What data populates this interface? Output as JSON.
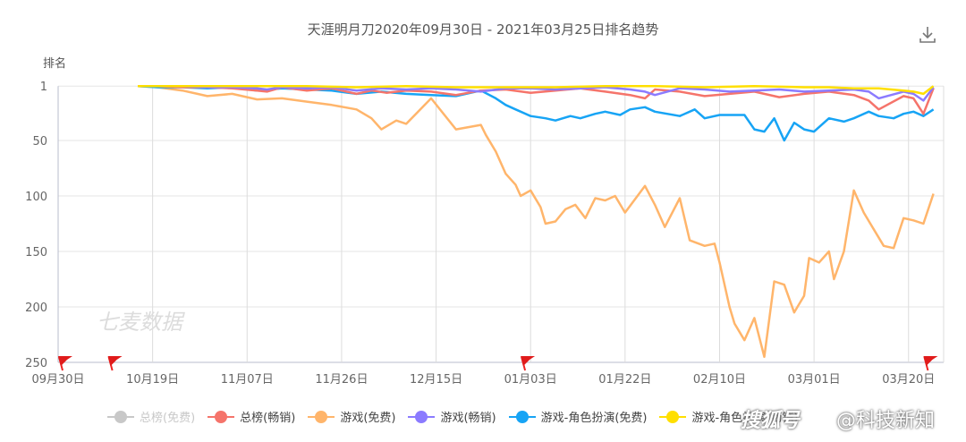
{
  "header": {
    "title": "天涯明月刀2020年09月30日 - 2021年03月25日排名趋势",
    "download_icon": "download-icon"
  },
  "watermarks": {
    "chart": "七麦数据",
    "overlay_brand": "搜狐号",
    "overlay_author": "@科技新知"
  },
  "chart_data": {
    "type": "line",
    "title": "天涯明月刀2020年09月30日 - 2021年03月25日排名趋势",
    "xlabel": "",
    "ylabel": "排名",
    "y_inverted": true,
    "ylim": [
      1,
      250
    ],
    "y_ticks": [
      1,
      50,
      100,
      150,
      200,
      250
    ],
    "x_ticks": [
      "09月30日",
      "10月19日",
      "11月07日",
      "11月26日",
      "12月15日",
      "01月03日",
      "01月22日",
      "02月10日",
      "03月01日",
      "03月20日"
    ],
    "grid": true,
    "legend_position": "bottom",
    "x_day_offsets_note": "x values are days since 09月30日",
    "series": [
      {
        "name": "总榜(免费)",
        "color": "#c8c8c8",
        "visible": false,
        "x": [],
        "values": []
      },
      {
        "name": "总榜(畅销)",
        "color": "#f5746b",
        "visible": true,
        "x": [
          16,
          20,
          25,
          30,
          35,
          40,
          42,
          45,
          50,
          55,
          60,
          63,
          66,
          70,
          75,
          80,
          85,
          90,
          95,
          100,
          105,
          110,
          115,
          118,
          120,
          125,
          130,
          135,
          140,
          145,
          150,
          155,
          160,
          163,
          165,
          170,
          172,
          174,
          176
        ],
        "values": [
          1,
          1,
          2,
          2,
          3,
          5,
          6,
          2,
          5,
          3,
          8,
          5,
          7,
          5,
          6,
          9,
          5,
          4,
          7,
          5,
          3,
          6,
          9,
          12,
          4,
          6,
          10,
          8,
          6,
          11,
          8,
          6,
          9,
          14,
          22,
          10,
          12,
          26,
          3
        ]
      },
      {
        "name": "游戏(免费)",
        "color": "#ffb56b",
        "visible": true,
        "x": [
          16,
          20,
          25,
          28,
          30,
          35,
          40,
          45,
          50,
          55,
          60,
          63,
          65,
          68,
          70,
          75,
          80,
          85,
          86,
          88,
          90,
          92,
          93,
          95,
          97,
          98,
          100,
          102,
          104,
          106,
          108,
          110,
          112,
          114,
          118,
          120,
          122,
          125,
          127,
          130,
          132,
          133,
          135,
          136,
          138,
          140,
          142,
          144,
          146,
          148,
          150,
          151,
          153,
          155,
          156,
          158,
          160,
          162,
          164,
          166,
          168,
          170,
          172,
          174,
          176
        ],
        "values": [
          1,
          2,
          5,
          8,
          10,
          8,
          13,
          12,
          15,
          18,
          22,
          30,
          40,
          32,
          35,
          12,
          40,
          36,
          45,
          60,
          80,
          90,
          100,
          95,
          110,
          125,
          123,
          112,
          108,
          120,
          102,
          104,
          100,
          115,
          91,
          108,
          128,
          102,
          140,
          145,
          143,
          160,
          200,
          215,
          230,
          210,
          245,
          177,
          180,
          205,
          190,
          156,
          160,
          150,
          175,
          150,
          95,
          115,
          130,
          145,
          147,
          120,
          122,
          125,
          98
        ]
      },
      {
        "name": "游戏(畅销)",
        "color": "#8b7bff",
        "visible": true,
        "x": [
          16,
          20,
          25,
          30,
          35,
          40,
          42,
          45,
          50,
          55,
          60,
          65,
          70,
          75,
          80,
          85,
          90,
          95,
          100,
          105,
          110,
          115,
          118,
          120,
          125,
          130,
          135,
          140,
          145,
          150,
          155,
          160,
          163,
          165,
          170,
          172,
          174,
          176
        ],
        "values": [
          1,
          1,
          1,
          2,
          2,
          3,
          4,
          2,
          3,
          2,
          5,
          3,
          4,
          3,
          4,
          6,
          3,
          3,
          4,
          3,
          2,
          4,
          6,
          9,
          3,
          4,
          6,
          5,
          4,
          6,
          5,
          4,
          6,
          12,
          6,
          8,
          14,
          2
        ]
      },
      {
        "name": "游戏-角色扮演(免费)",
        "color": "#17a4f5",
        "visible": true,
        "x": [
          16,
          20,
          25,
          30,
          35,
          40,
          45,
          50,
          55,
          60,
          65,
          70,
          75,
          80,
          85,
          88,
          90,
          92,
          95,
          98,
          100,
          103,
          105,
          108,
          110,
          113,
          115,
          118,
          120,
          125,
          128,
          130,
          133,
          135,
          138,
          140,
          142,
          144,
          146,
          148,
          150,
          152,
          155,
          158,
          160,
          163,
          165,
          168,
          170,
          172,
          174,
          176
        ],
        "values": [
          1,
          2,
          2,
          3,
          2,
          5,
          3,
          4,
          5,
          8,
          6,
          8,
          9,
          10,
          5,
          12,
          18,
          22,
          28,
          30,
          32,
          28,
          30,
          26,
          24,
          27,
          22,
          20,
          24,
          28,
          22,
          30,
          27,
          27,
          27,
          40,
          42,
          30,
          50,
          34,
          40,
          42,
          30,
          33,
          30,
          24,
          28,
          30,
          26,
          24,
          28,
          22
        ]
      },
      {
        "name": "游戏-角色扮演(畅销)",
        "color": "#ffdf00",
        "visible": true,
        "x": [
          16,
          20,
          30,
          40,
          50,
          60,
          70,
          80,
          90,
          100,
          110,
          120,
          130,
          140,
          150,
          155,
          160,
          165,
          170,
          172,
          174,
          176
        ],
        "values": [
          1,
          1,
          1,
          1,
          1,
          2,
          1,
          2,
          2,
          2,
          1,
          1,
          2,
          1,
          2,
          2,
          3,
          3,
          5,
          6,
          8,
          1
        ]
      }
    ],
    "event_flags_x_days": [
      0,
      10,
      93,
      174
    ]
  },
  "legend": {
    "items": [
      {
        "label": "总榜(免费)",
        "color": "#c8c8c8"
      },
      {
        "label": "总榜(畅销)",
        "color": "#f5746b"
      },
      {
        "label": "游戏(免费)",
        "color": "#ffb56b"
      },
      {
        "label": "游戏(畅销)",
        "color": "#8b7bff"
      },
      {
        "label": "游戏-角色扮演(免费)",
        "color": "#17a4f5"
      },
      {
        "label": "游戏-角色扮演(畅销)",
        "color": "#ffdf00"
      }
    ]
  }
}
